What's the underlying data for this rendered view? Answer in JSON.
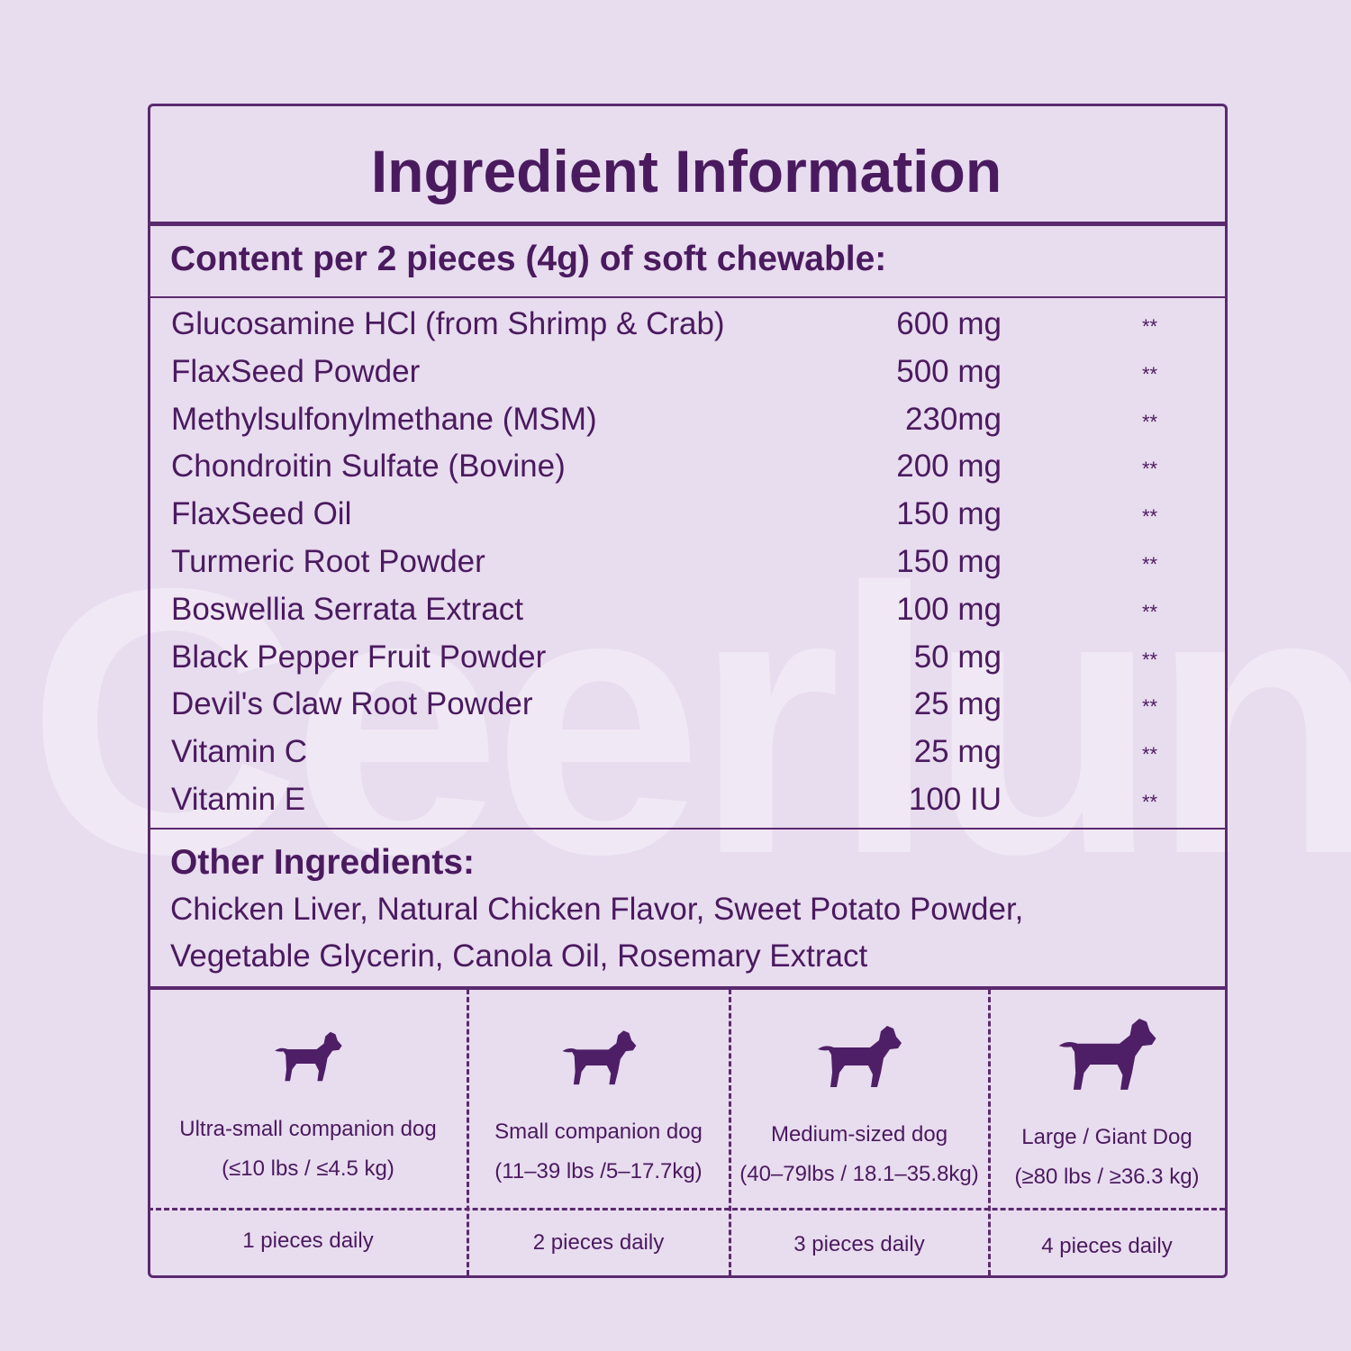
{
  "watermark": "Ceerlun",
  "title": "Ingredient Information",
  "content_header": "Content per 2 pieces (4g) of soft chewable:",
  "ingredients": [
    {
      "name": "Glucosamine HCl (from Shrimp & Crab)",
      "amount": "600 mg",
      "mark": "**"
    },
    {
      "name": "FlaxSeed Powder",
      "amount": "500 mg",
      "mark": "**"
    },
    {
      "name": "Methylsulfonylmethane (MSM)",
      "amount": "230mg",
      "mark": "**"
    },
    {
      "name": "Chondroitin Sulfate (Bovine)",
      "amount": "200 mg",
      "mark": "**"
    },
    {
      "name": "FlaxSeed Oil",
      "amount": "150 mg",
      "mark": "**"
    },
    {
      "name": "Turmeric Root Powder",
      "amount": "150 mg",
      "mark": "**"
    },
    {
      "name": "Boswellia Serrata Extract",
      "amount": "100 mg",
      "mark": "**"
    },
    {
      "name": "Black Pepper Fruit Powder",
      "amount": "50 mg",
      "mark": "**"
    },
    {
      "name": "Devil's Claw Root Powder",
      "amount": "25 mg",
      "mark": "**"
    },
    {
      "name": "Vitamin C",
      "amount": "25 mg",
      "mark": "**"
    },
    {
      "name": "Vitamin E",
      "amount": "100 IU",
      "mark": "**"
    }
  ],
  "other": {
    "heading": "Other Ingredients:",
    "lines": [
      "Chicken Liver, Natural Chicken Flavor, Sweet Potato Powder,",
      "Vegetable Glycerin, Canola Oil, Rosemary Extract"
    ]
  },
  "dosage": [
    {
      "size": "Ultra-small companion dog",
      "weight": "(≤10 lbs / ≤4.5 kg)",
      "dose": "1 pieces daily"
    },
    {
      "size": "Small companion dog",
      "weight": "(11–39 lbs /5–17.7kg)",
      "dose": "2 pieces daily"
    },
    {
      "size": "Medium-sized dog",
      "weight": "(40–79lbs / 18.1–35.8kg)",
      "dose": "3 pieces daily"
    },
    {
      "size": "Large / Giant Dog",
      "weight": "(≥80 lbs / ≥36.3 kg)",
      "dose": "4 pieces daily"
    }
  ]
}
